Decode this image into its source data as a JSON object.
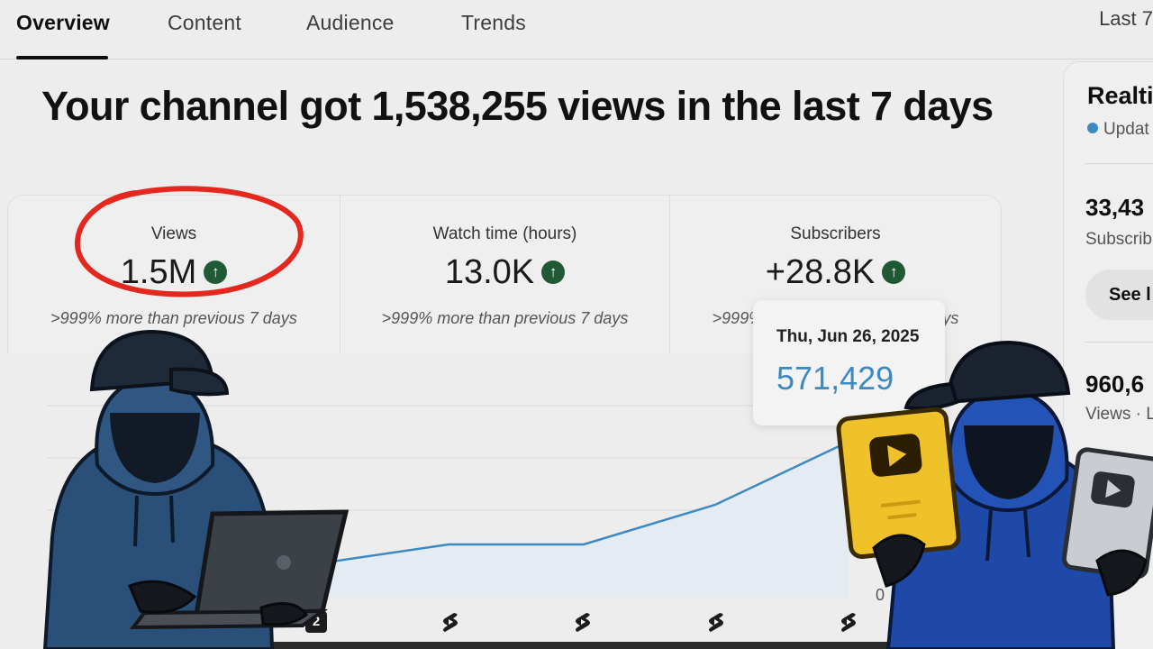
{
  "tabs": [
    {
      "label": "Overview",
      "active": true
    },
    {
      "label": "Content",
      "active": false
    },
    {
      "label": "Audience",
      "active": false
    },
    {
      "label": "Trends",
      "active": false
    }
  ],
  "period_label": "Last 7",
  "headline": "Your channel got 1,538,255 views in the last 7 days",
  "metrics": [
    {
      "label": "Views",
      "value": "1.5M",
      "trend": "up",
      "delta": ">999% more than previous 7 days"
    },
    {
      "label": "Watch time (hours)",
      "value": "13.0K",
      "trend": "up",
      "delta": ">999% more than previous 7 days"
    },
    {
      "label": "Subscribers",
      "value": "+28.8K",
      "trend": "up",
      "delta": ">999% more than previous 7 days"
    }
  ],
  "tooltip": {
    "date": "Thu, Jun 26, 2025",
    "value": "571,429"
  },
  "chart_data": {
    "type": "line",
    "x_markers": [
      "2",
      "shorts",
      "shorts",
      "shorts",
      "shorts"
    ],
    "y_axis_visible_label": "0",
    "line_color": "#3d8ac1"
  },
  "realtime": {
    "title": "Realti",
    "updating": "Updat",
    "subs_value": "33,43",
    "subs_label": "Subscrib",
    "see_button": "See l",
    "views_value": "960,6",
    "views_label": "Views · L"
  },
  "colors": {
    "accent_green": "#1f5a35",
    "tooltip_blue": "#3d8ac1",
    "annotation_red": "#e4281f",
    "hoodie_blue": "#2a4f78",
    "gold_play_button": "#f0c22a"
  },
  "icons": [
    "arrow-up-icon",
    "youtube-shorts-icon",
    "play-button-award-icon"
  ]
}
